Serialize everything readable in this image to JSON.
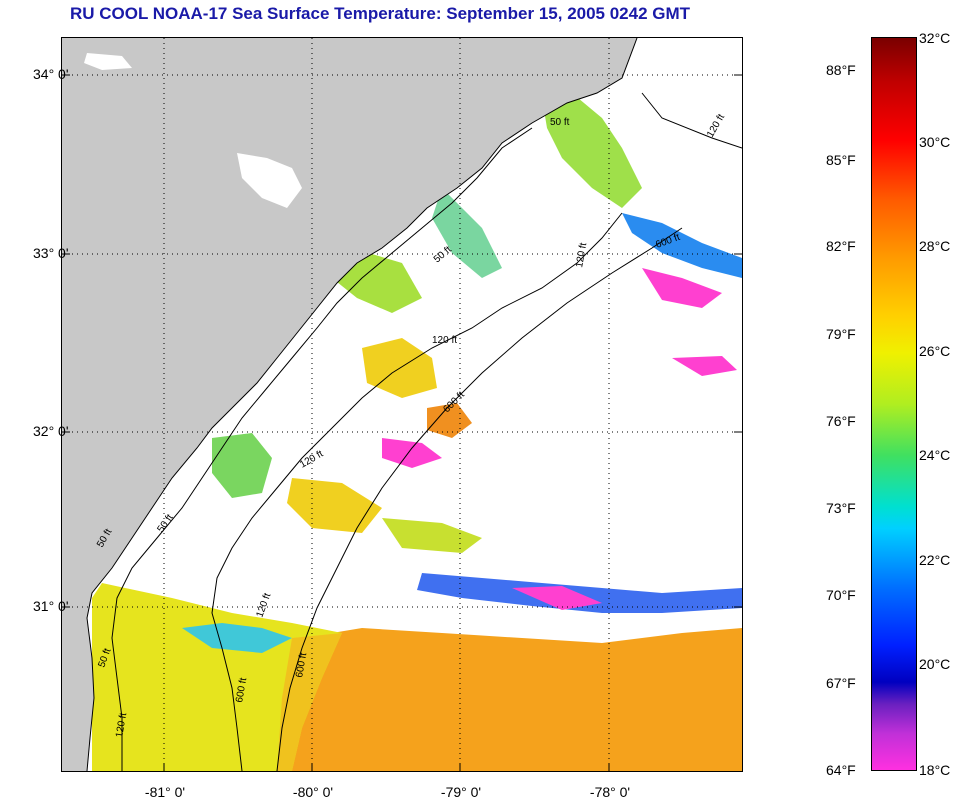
{
  "title": "RU COOL  NOAA-17  Sea Surface Temperature:  September 15, 2005 0242 GMT",
  "latitude_labels": [
    "34° 0'",
    "33° 0'",
    "32° 0'",
    "31° 0'"
  ],
  "longitude_labels": [
    "-81° 0'",
    "-80° 0'",
    "-79° 0'",
    "-78° 0'"
  ],
  "isobath_labels": [
    "50 ft",
    "120 ft",
    "600 ft",
    "50 ft",
    "120 ft",
    "600 ft",
    "120 ft",
    "50 ft",
    "120 ft",
    "600 ft",
    "50 ft",
    "120 ft",
    "600 ft",
    "50 ft",
    "120 ft"
  ],
  "colorbar": {
    "fahrenheit_labels": [
      "88°F",
      "85°F",
      "82°F",
      "79°F",
      "76°F",
      "73°F",
      "70°F",
      "67°F",
      "64°F"
    ],
    "celsius_labels": [
      "32°C",
      "30°C",
      "28°C",
      "26°C",
      "24°C",
      "22°C",
      "20°C",
      "18°C"
    ],
    "range_celsius": [
      18,
      32
    ]
  },
  "colors": {
    "title": "#1a1aa8",
    "land": "#c8c8c8",
    "cloud": "#ffffff",
    "warm_water": "#f5a21c",
    "shelf_water": "#e8e81e",
    "cool_patch": "#ff40d0"
  }
}
